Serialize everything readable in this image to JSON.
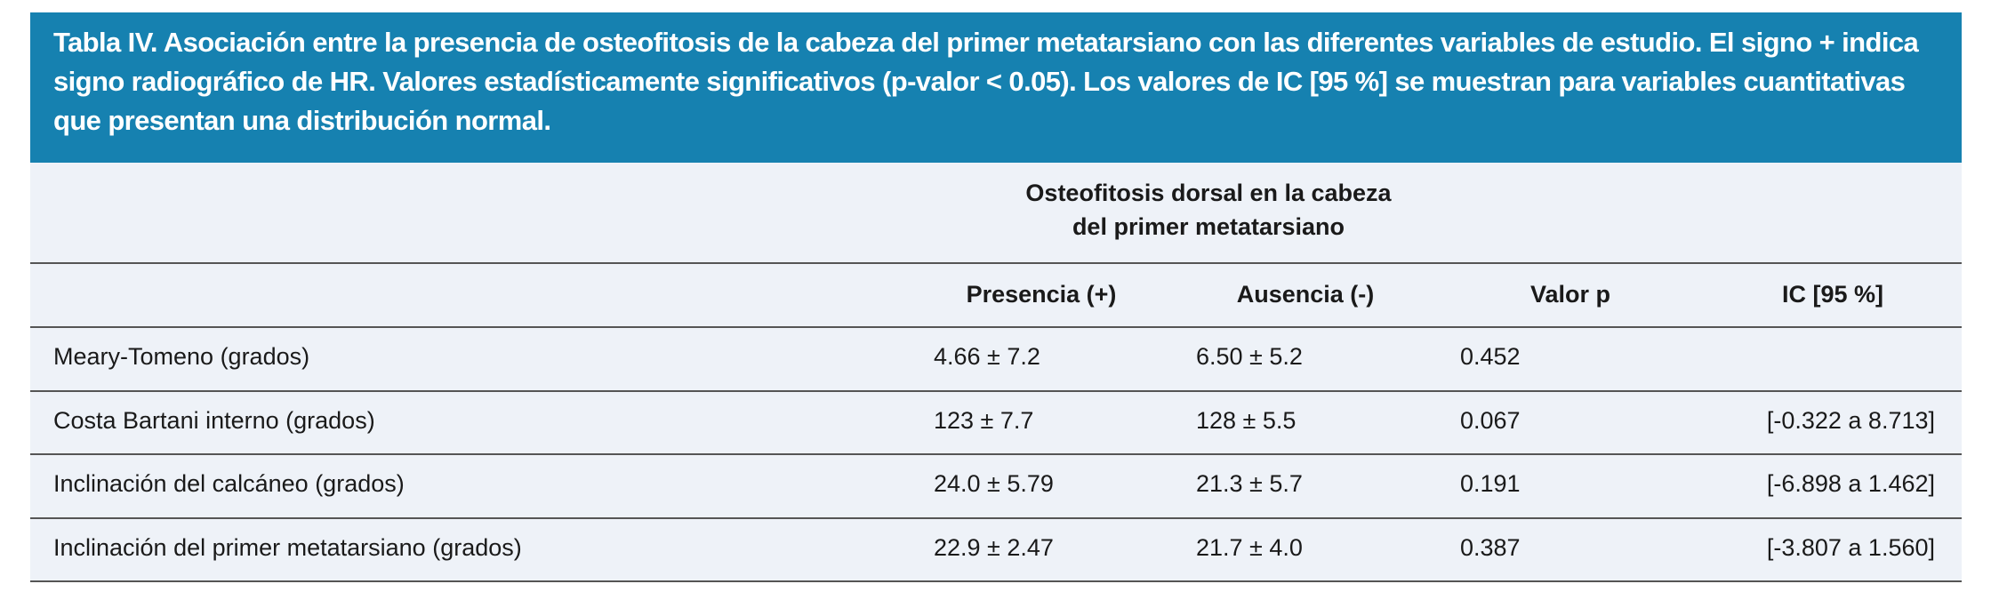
{
  "caption": "Tabla IV. Asociación entre la presencia de osteofitosis de la cabeza del primer metatarsiano con las diferentes variables de estudio. El signo + indica signo radiográfico de HR. Valores estadísticamente significativos (p-valor < 0.05). Los valores de IC [95 %] se muestran para variables cuantitativas que presentan una distribución normal.",
  "group_header": {
    "line1": "Osteofitosis dorsal en la cabeza",
    "line2": "del primer metatarsiano"
  },
  "columns": [
    "",
    "Presencia (+)",
    "Ausencia (-)",
    "Valor p",
    "IC [95 %]"
  ],
  "rows": [
    [
      "Meary-Tomeno (grados)",
      "4.66 ± 7.2",
      "6.50 ± 5.2",
      "0.452",
      ""
    ],
    [
      "Costa Bartani interno (grados)",
      "123 ± 7.7",
      "128 ± 5.5",
      "0.067",
      "[-0.322 a 8.713]"
    ],
    [
      "Inclinación del calcáneo (grados)",
      "24.0 ± 5.79",
      "21.3 ± 5.7",
      "0.191",
      "[-6.898 a 1.462]"
    ],
    [
      "Inclinación del primer metatarsiano (grados)",
      "22.9 ± 2.47",
      "21.7 ± 4.0",
      "0.387",
      "[-3.807 a 1.560]"
    ]
  ],
  "colors": {
    "caption_bg": "#1681b0",
    "table_bg": "#eef2f8"
  }
}
